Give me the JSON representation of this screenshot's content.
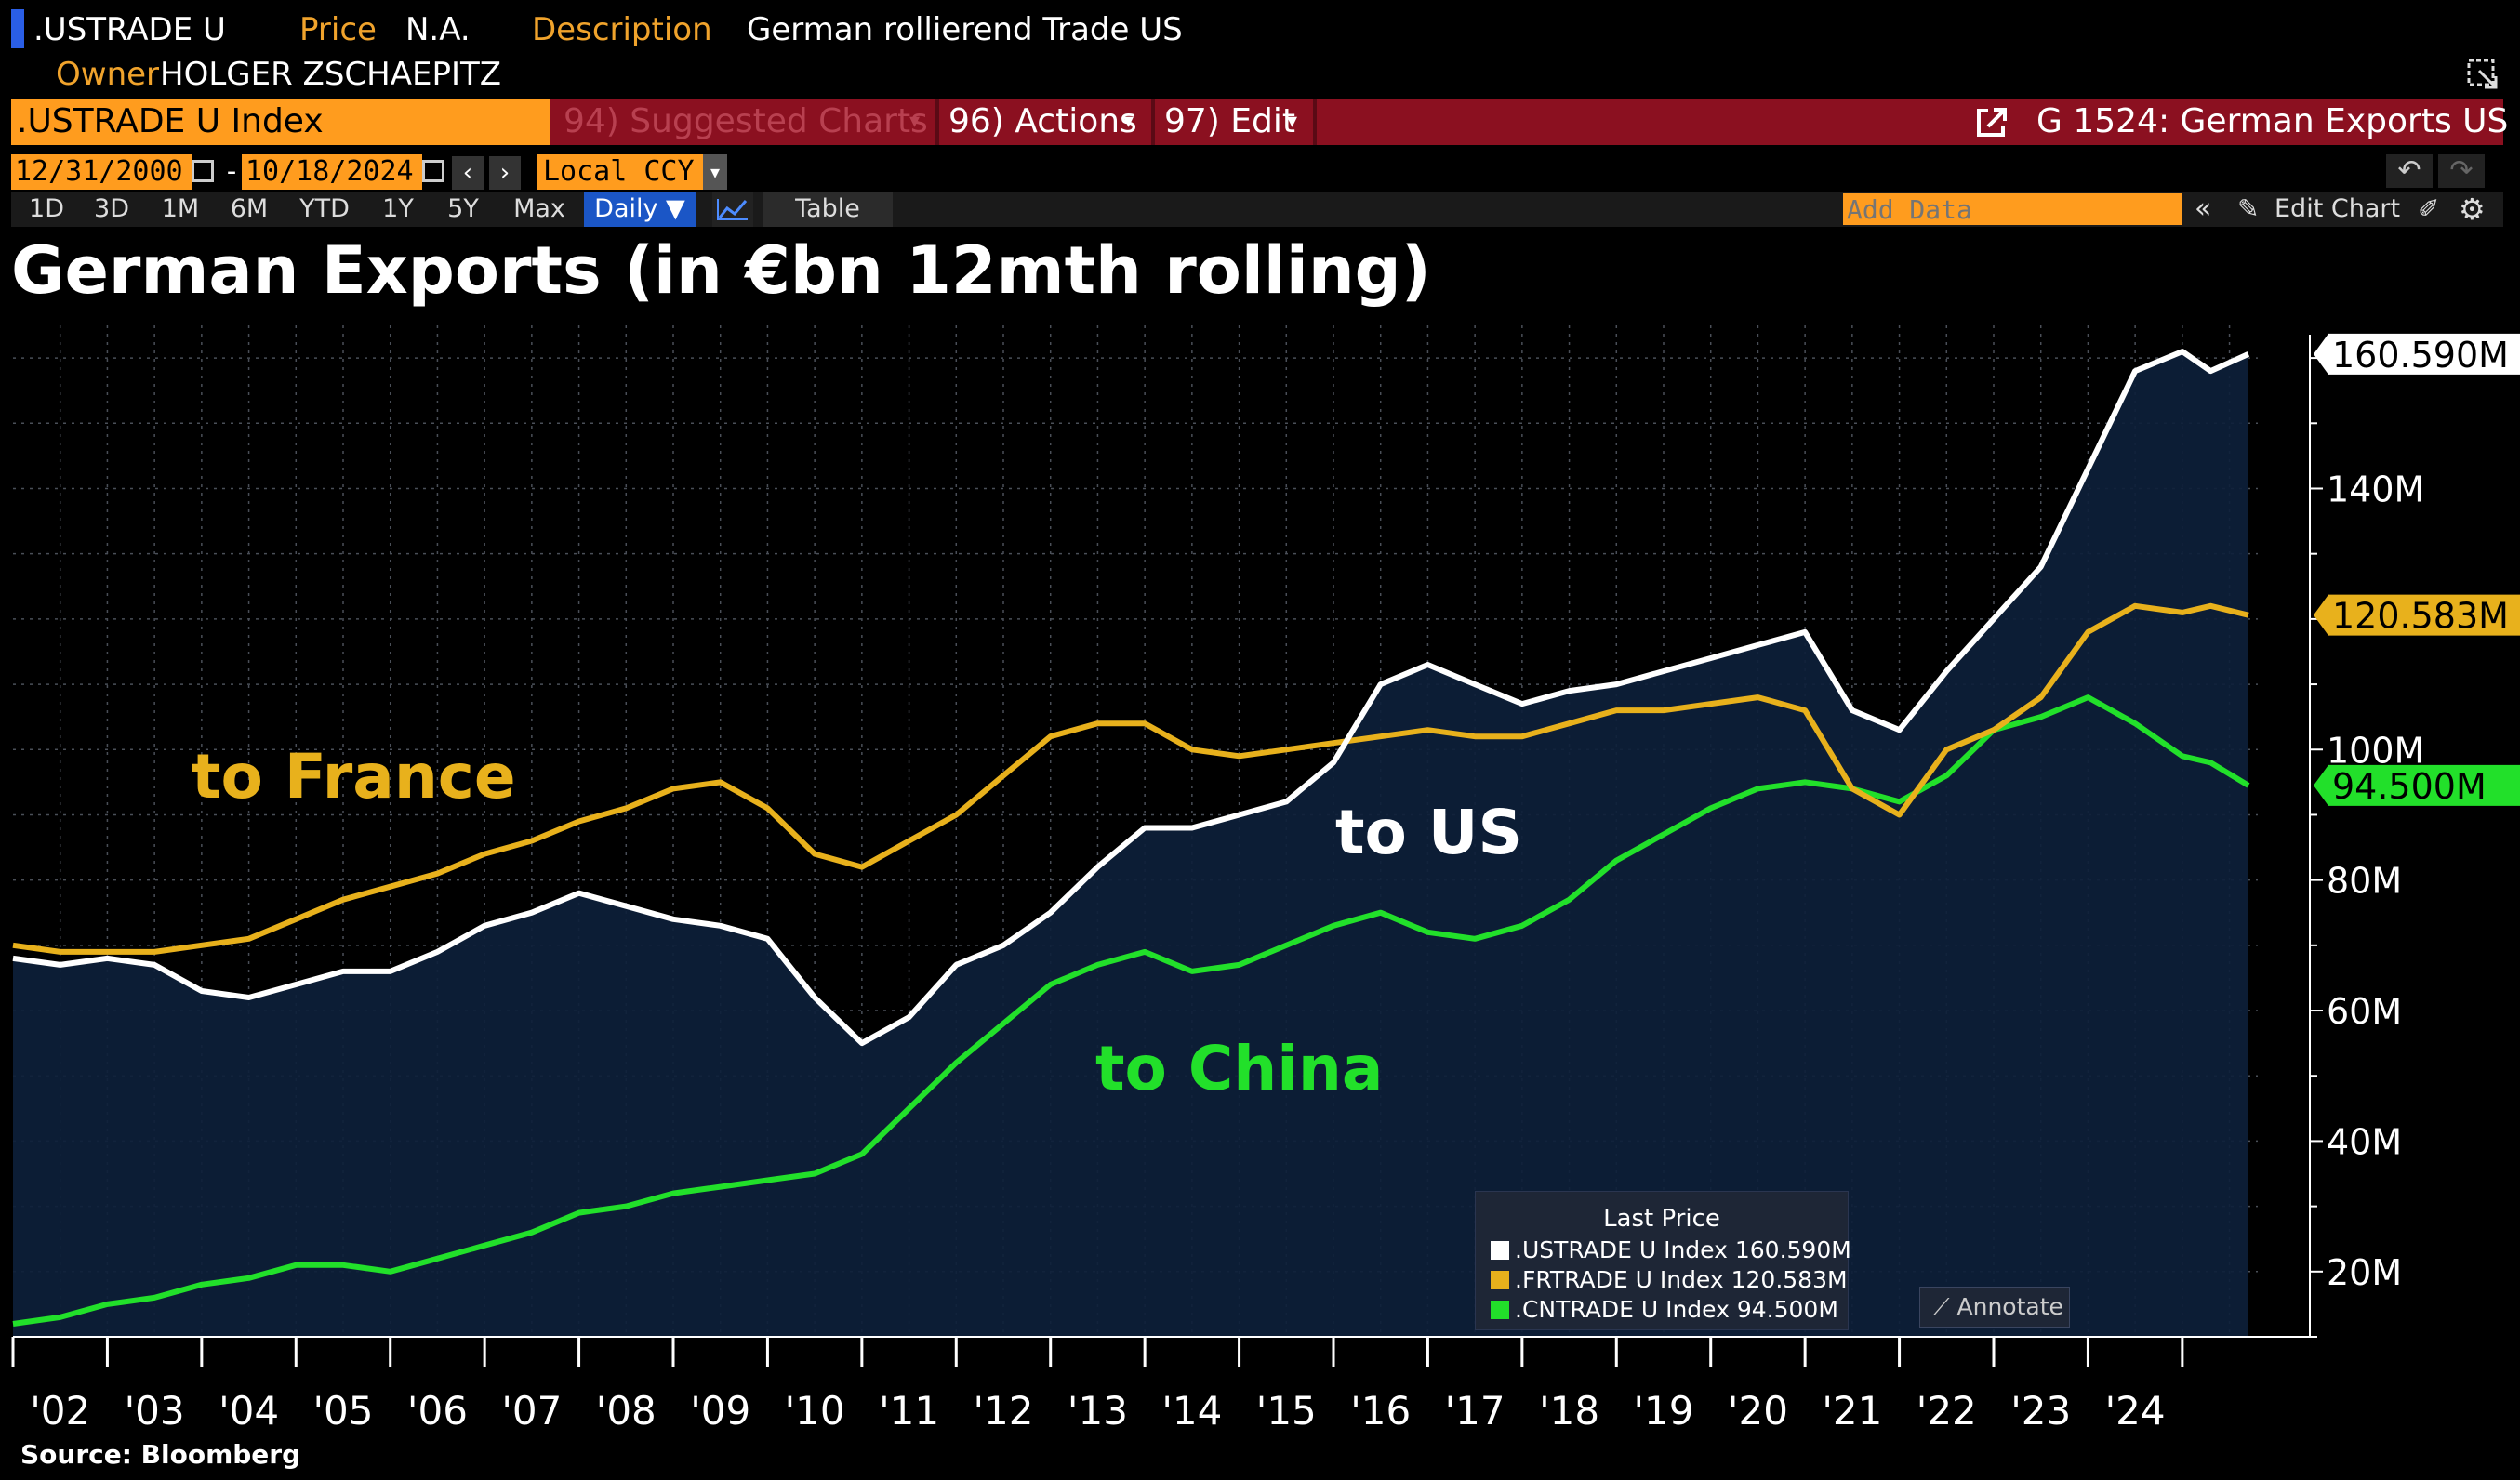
{
  "header": {
    "ticker": ".USTRADE U",
    "price_label": "Price",
    "price_value": "N.A.",
    "desc_label": "Description",
    "desc_value": "German rollierend Trade US",
    "owner_label": "Owner",
    "owner_value": "HOLGER ZSCHAEPITZ"
  },
  "command_bar": {
    "security": ".USTRADE U Index",
    "suggested": "94) Suggested Charts",
    "actions": "96) Actions",
    "edit": "97) Edit",
    "chart_id": "G 1524: German Exports US"
  },
  "range": {
    "start": "12/31/2000",
    "separator": "-",
    "end": "10/18/2024",
    "currency": "Local CCY"
  },
  "periods": [
    "1D",
    "3D",
    "1M",
    "6M",
    "YTD",
    "1Y",
    "5Y",
    "Max"
  ],
  "frequency": "Daily ▼",
  "table_label": "Table",
  "add_data_placeholder": "Add Data",
  "edit_chart": "Edit Chart",
  "source": "Source: Bloomberg",
  "legend": {
    "title": "Last Price",
    "items": [
      ".USTRADE U Index 160.590M",
      ".FRTRADE U Index 120.583M",
      ".CNTRADE U Index 94.500M"
    ]
  },
  "annotate": "Annotate",
  "colors": {
    "us": "#ffffff",
    "france": "#e8b11c",
    "china": "#22e02a",
    "area": "#0d1f3a",
    "accent": "#ff9c1e",
    "bar": "#8b1020"
  },
  "chart_data": {
    "type": "line",
    "title": "German Exports (in €bn 12mth rolling)",
    "xlabel": "",
    "ylabel": "",
    "ylim": [
      10,
      165
    ],
    "yticks": [
      20,
      40,
      60,
      80,
      100,
      120,
      140
    ],
    "ytick_labels": [
      "20M",
      "40M",
      "60M",
      "80M",
      "100M",
      "120M",
      "140M"
    ],
    "x_labels": [
      "'02",
      "'03",
      "'04",
      "'05",
      "'06",
      "'07",
      "'08",
      "'09",
      "'10",
      "'11",
      "'12",
      "'13",
      "'14",
      "'15",
      "'16",
      "'17",
      "'18",
      "'19",
      "'20",
      "'21",
      "'22",
      "'23",
      "'24"
    ],
    "x_label_years": [
      2002,
      2003,
      2004,
      2005,
      2006,
      2007,
      2008,
      2009,
      2010,
      2011,
      2012,
      2013,
      2014,
      2015,
      2016,
      2017,
      2018,
      2019,
      2020,
      2021,
      2022,
      2023,
      2024
    ],
    "xlim": [
      2001.0,
      2024.8
    ],
    "series": [
      {
        "name": "to US",
        "key": "us",
        "last_label": "160.590M",
        "text_label": "to US",
        "x": [
          2001.0,
          2001.5,
          2002.0,
          2002.5,
          2003.0,
          2003.5,
          2004.0,
          2004.5,
          2005.0,
          2005.5,
          2006.0,
          2006.5,
          2007.0,
          2007.5,
          2008.0,
          2008.5,
          2009.0,
          2009.5,
          2010.0,
          2010.5,
          2011.0,
          2011.5,
          2012.0,
          2012.5,
          2013.0,
          2013.5,
          2014.0,
          2014.5,
          2015.0,
          2015.5,
          2016.0,
          2016.5,
          2017.0,
          2017.5,
          2018.0,
          2018.5,
          2019.0,
          2019.5,
          2020.0,
          2020.5,
          2021.0,
          2021.5,
          2022.0,
          2022.5,
          2023.0,
          2023.5,
          2024.0,
          2024.3,
          2024.7
        ],
        "y": [
          68,
          67,
          68,
          67,
          63,
          62,
          64,
          66,
          66,
          69,
          73,
          75,
          78,
          76,
          74,
          73,
          71,
          62,
          55,
          59,
          67,
          70,
          75,
          82,
          88,
          88,
          90,
          92,
          98,
          110,
          113,
          110,
          107,
          109,
          110,
          112,
          114,
          116,
          118,
          106,
          103,
          112,
          120,
          128,
          143,
          158,
          161,
          158,
          160.6
        ]
      },
      {
        "name": "to France",
        "key": "france",
        "last_label": "120.583M",
        "text_label": "to France",
        "x": [
          2001.0,
          2001.5,
          2002.0,
          2002.5,
          2003.0,
          2003.5,
          2004.0,
          2004.5,
          2005.0,
          2005.5,
          2006.0,
          2006.5,
          2007.0,
          2007.5,
          2008.0,
          2008.5,
          2009.0,
          2009.5,
          2010.0,
          2010.5,
          2011.0,
          2011.5,
          2012.0,
          2012.5,
          2013.0,
          2013.5,
          2014.0,
          2014.5,
          2015.0,
          2015.5,
          2016.0,
          2016.5,
          2017.0,
          2017.5,
          2018.0,
          2018.5,
          2019.0,
          2019.5,
          2020.0,
          2020.5,
          2021.0,
          2021.5,
          2022.0,
          2022.5,
          2023.0,
          2023.5,
          2024.0,
          2024.3,
          2024.7
        ],
        "y": [
          70,
          69,
          69,
          69,
          70,
          71,
          74,
          77,
          79,
          81,
          84,
          86,
          89,
          91,
          94,
          95,
          91,
          84,
          82,
          86,
          90,
          96,
          102,
          104,
          104,
          100,
          99,
          100,
          101,
          102,
          103,
          102,
          102,
          104,
          106,
          106,
          107,
          108,
          106,
          94,
          90,
          100,
          103,
          108,
          118,
          122,
          121,
          122,
          120.6
        ]
      },
      {
        "name": "to China",
        "key": "china",
        "last_label": "94.500M",
        "text_label": "to China",
        "x": [
          2001.0,
          2001.5,
          2002.0,
          2002.5,
          2003.0,
          2003.5,
          2004.0,
          2004.5,
          2005.0,
          2005.5,
          2006.0,
          2006.5,
          2007.0,
          2007.5,
          2008.0,
          2008.5,
          2009.0,
          2009.5,
          2010.0,
          2010.5,
          2011.0,
          2011.5,
          2012.0,
          2012.5,
          2013.0,
          2013.5,
          2014.0,
          2014.5,
          2015.0,
          2015.5,
          2016.0,
          2016.5,
          2017.0,
          2017.5,
          2018.0,
          2018.5,
          2019.0,
          2019.5,
          2020.0,
          2020.5,
          2021.0,
          2021.5,
          2022.0,
          2022.5,
          2023.0,
          2023.5,
          2024.0,
          2024.3,
          2024.7
        ],
        "y": [
          12,
          13,
          15,
          16,
          18,
          19,
          21,
          21,
          20,
          22,
          24,
          26,
          29,
          30,
          32,
          33,
          34,
          35,
          38,
          45,
          52,
          58,
          64,
          67,
          69,
          66,
          67,
          70,
          73,
          75,
          72,
          71,
          73,
          77,
          83,
          87,
          91,
          94,
          95,
          94,
          92,
          96,
          103,
          105,
          108,
          104,
          99,
          98,
          94.5
        ]
      }
    ]
  }
}
